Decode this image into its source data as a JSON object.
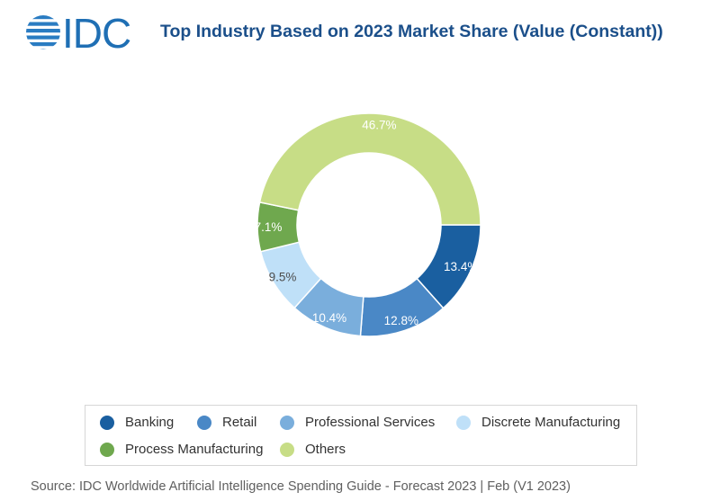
{
  "logo_text": "IDC",
  "colors": {
    "brand": "#1b4f8a",
    "Banking": "#1a5fa0",
    "Retail": "#4a88c6",
    "Professional Services": "#7aaedc",
    "Discrete Manufacturing": "#bfe0f8",
    "Process Manufacturing": "#6fa84e",
    "Others": "#c7dd86"
  },
  "chart_data": {
    "type": "pie",
    "variant": "donut",
    "title": "Top Industry Based on 2023 Market Share (Value (Constant))",
    "categories": [
      "Banking",
      "Retail",
      "Professional Services",
      "Discrete Manufacturing",
      "Process Manufacturing",
      "Others"
    ],
    "values": [
      13.4,
      12.8,
      10.4,
      9.5,
      7.1,
      46.7
    ],
    "labels": [
      "13.4%",
      "12.8%",
      "10.4%",
      "9.5%",
      "7.1%",
      "46.7%"
    ],
    "legend_position": "bottom"
  },
  "source": "Source: IDC Worldwide Artificial Intelligence Spending Guide - Forecast 2023 | Feb (V1 2023)"
}
